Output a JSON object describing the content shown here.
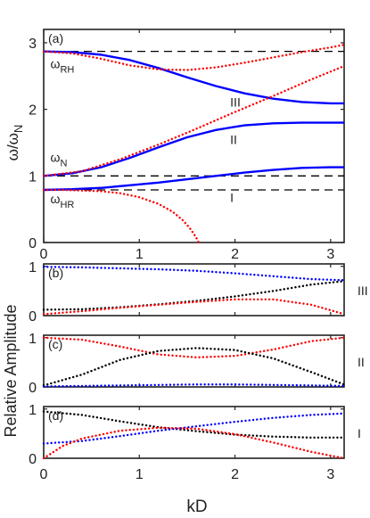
{
  "figure": {
    "shared_xlabel": "kD",
    "shared_ylabel_bottom": "Relative Amplitude"
  },
  "chart_data": [
    {
      "panel": "a",
      "panel_label": "(a)",
      "type": "line",
      "ylabel_main": "ω/ω",
      "ylabel_sub": "N",
      "xlim": [
        0,
        3.1416
      ],
      "ylim": [
        0,
        3.2
      ],
      "xticks": [
        0,
        1,
        2,
        3
      ],
      "yticks": [
        0,
        1,
        2,
        3
      ],
      "xticklabels": [
        "0",
        "1",
        "2",
        "3"
      ],
      "yticklabels": [
        "0",
        "1",
        "2",
        "3"
      ],
      "hlines": [
        {
          "y": 2.87,
          "style": "dashed",
          "color": "#000000"
        },
        {
          "y": 1.0,
          "style": "dashed",
          "color": "#000000"
        },
        {
          "y": 0.79,
          "style": "dashed",
          "color": "#000000"
        }
      ],
      "annotations": [
        {
          "id": "omega-rh",
          "main": "ω",
          "sub": "RH",
          "x": 0.07,
          "y": 2.62
        },
        {
          "id": "omega-n",
          "main": "ω",
          "sub": "N",
          "x": 0.07,
          "y": 1.21
        },
        {
          "id": "omega-hr",
          "main": "ω",
          "sub": "HR",
          "x": 0.07,
          "y": 0.59
        },
        {
          "id": "branch-iii",
          "text": "III",
          "x": 1.95,
          "y": 2.04
        },
        {
          "id": "branch-ii",
          "text": "II",
          "x": 1.95,
          "y": 1.48
        },
        {
          "id": "branch-i",
          "text": "I",
          "x": 1.95,
          "y": 0.61
        }
      ],
      "series": [
        {
          "id": "branch-iii-solid",
          "color": "#0000ff",
          "style": "solid",
          "x": [
            0,
            0.3,
            0.6,
            0.9,
            1.2,
            1.5,
            1.8,
            2.1,
            2.4,
            2.7,
            3.0,
            3.1416
          ],
          "y": [
            2.87,
            2.86,
            2.82,
            2.74,
            2.62,
            2.48,
            2.35,
            2.24,
            2.16,
            2.11,
            2.09,
            2.09
          ]
        },
        {
          "id": "branch-ii-solid",
          "color": "#0000ff",
          "style": "solid",
          "x": [
            0,
            0.3,
            0.6,
            0.9,
            1.2,
            1.5,
            1.8,
            2.1,
            2.4,
            2.7,
            3.0,
            3.1416
          ],
          "y": [
            1.0,
            1.04,
            1.13,
            1.27,
            1.43,
            1.58,
            1.69,
            1.76,
            1.79,
            1.8,
            1.8,
            1.8
          ]
        },
        {
          "id": "branch-i-solid",
          "color": "#0000ff",
          "style": "solid",
          "x": [
            0,
            0.3,
            0.6,
            0.9,
            1.2,
            1.5,
            1.8,
            2.1,
            2.4,
            2.7,
            3.0,
            3.1416
          ],
          "y": [
            0.79,
            0.8,
            0.82,
            0.86,
            0.9,
            0.95,
            1.0,
            1.05,
            1.09,
            1.12,
            1.13,
            1.13
          ]
        },
        {
          "id": "upper-dotted",
          "color": "#ff0000",
          "style": "dotted",
          "x": [
            0,
            0.3,
            0.6,
            0.9,
            1.2,
            1.5,
            1.8,
            2.1,
            2.4,
            2.7,
            3.0,
            3.1416
          ],
          "y": [
            2.87,
            2.84,
            2.76,
            2.66,
            2.6,
            2.59,
            2.63,
            2.7,
            2.78,
            2.86,
            2.93,
            2.97
          ]
        },
        {
          "id": "light-line-dotted",
          "color": "#ff0000",
          "style": "dotted",
          "x": [
            0,
            0.4,
            0.8,
            1.2,
            1.6,
            2.0,
            2.4,
            2.8,
            3.1416
          ],
          "y": [
            1.0,
            1.07,
            1.25,
            1.47,
            1.71,
            1.96,
            2.2,
            2.45,
            2.65
          ]
        },
        {
          "id": "lower-dotted",
          "color": "#ff0000",
          "style": "dotted",
          "x": [
            0,
            0.2,
            0.4,
            0.6,
            0.8,
            1.0,
            1.2,
            1.35,
            1.45,
            1.52,
            1.57,
            1.6,
            1.62
          ],
          "y": [
            0.79,
            0.79,
            0.78,
            0.77,
            0.74,
            0.68,
            0.58,
            0.46,
            0.34,
            0.23,
            0.13,
            0.06,
            0.0
          ]
        }
      ]
    },
    {
      "panel": "b",
      "panel_label": "(b)",
      "branch_label": "III",
      "type": "line",
      "xlim": [
        0,
        3.1416
      ],
      "ylim": [
        0,
        1.05
      ],
      "yticks": [
        0,
        1
      ],
      "yticklabels": [
        "0",
        "1"
      ],
      "series": [
        {
          "id": "b-blue",
          "color": "#0000ff",
          "style": "dotted",
          "x": [
            0,
            0.4,
            0.8,
            1.2,
            1.6,
            2.0,
            2.4,
            2.8,
            3.1416
          ],
          "y": [
            0.99,
            0.98,
            0.96,
            0.94,
            0.91,
            0.86,
            0.8,
            0.74,
            0.72
          ]
        },
        {
          "id": "b-black",
          "color": "#000000",
          "style": "dotted",
          "x": [
            0,
            0.4,
            0.8,
            1.2,
            1.6,
            2.0,
            2.4,
            2.8,
            3.1416
          ],
          "y": [
            0.12,
            0.13,
            0.17,
            0.23,
            0.3,
            0.39,
            0.5,
            0.63,
            0.7
          ]
        },
        {
          "id": "b-red",
          "color": "#ff0000",
          "style": "dotted",
          "x": [
            0,
            0.4,
            0.8,
            1.2,
            1.6,
            2.0,
            2.4,
            2.8,
            3.1416
          ],
          "y": [
            0.03,
            0.09,
            0.16,
            0.22,
            0.28,
            0.33,
            0.33,
            0.22,
            0.03
          ]
        }
      ]
    },
    {
      "panel": "c",
      "panel_label": "(c)",
      "branch_label": "II",
      "type": "line",
      "xlim": [
        0,
        3.1416
      ],
      "ylim": [
        0,
        1.05
      ],
      "yticks": [
        0,
        1
      ],
      "yticklabels": [
        "0",
        "1"
      ],
      "series": [
        {
          "id": "c-red",
          "color": "#ff0000",
          "style": "dotted",
          "x": [
            0,
            0.4,
            0.8,
            1.2,
            1.6,
            2.0,
            2.4,
            2.8,
            3.1416
          ],
          "y": [
            1.0,
            0.96,
            0.82,
            0.66,
            0.6,
            0.63,
            0.76,
            0.93,
            1.0
          ]
        },
        {
          "id": "c-black",
          "color": "#000000",
          "style": "dotted",
          "x": [
            0,
            0.4,
            0.8,
            1.2,
            1.6,
            2.0,
            2.4,
            2.8,
            3.1416
          ],
          "y": [
            0.03,
            0.25,
            0.55,
            0.73,
            0.79,
            0.75,
            0.58,
            0.3,
            0.05
          ]
        },
        {
          "id": "c-blue",
          "color": "#0000ff",
          "style": "dotted",
          "x": [
            0,
            0.4,
            0.8,
            1.2,
            1.6,
            2.0,
            2.4,
            2.8,
            3.1416
          ],
          "y": [
            0.01,
            0.02,
            0.03,
            0.04,
            0.05,
            0.05,
            0.04,
            0.03,
            0.02
          ]
        }
      ]
    },
    {
      "panel": "d",
      "panel_label": "(d)",
      "branch_label": "I",
      "type": "line",
      "xlim": [
        0,
        3.1416
      ],
      "ylim": [
        0,
        1.05
      ],
      "yticks": [
        0,
        1
      ],
      "yticklabels": [
        "0",
        "1"
      ],
      "series": [
        {
          "id": "d-black",
          "color": "#000000",
          "style": "dotted",
          "x": [
            0,
            0.4,
            0.8,
            1.2,
            1.6,
            2.0,
            2.4,
            2.8,
            3.1416
          ],
          "y": [
            0.95,
            0.88,
            0.75,
            0.63,
            0.55,
            0.48,
            0.44,
            0.42,
            0.42
          ]
        },
        {
          "id": "d-blue",
          "color": "#0000ff",
          "style": "dotted",
          "x": [
            0,
            0.4,
            0.8,
            1.2,
            1.6,
            2.0,
            2.4,
            2.8,
            3.1416
          ],
          "y": [
            0.3,
            0.35,
            0.45,
            0.56,
            0.65,
            0.74,
            0.82,
            0.88,
            0.91
          ]
        },
        {
          "id": "d-red",
          "color": "#ff0000",
          "style": "dotted",
          "x": [
            0,
            0.2,
            0.4,
            0.8,
            1.2,
            1.6,
            2.0,
            2.4,
            2.8,
            3.1416
          ],
          "y": [
            0.0,
            0.25,
            0.4,
            0.56,
            0.62,
            0.6,
            0.49,
            0.32,
            0.13,
            0.0
          ]
        }
      ]
    }
  ]
}
